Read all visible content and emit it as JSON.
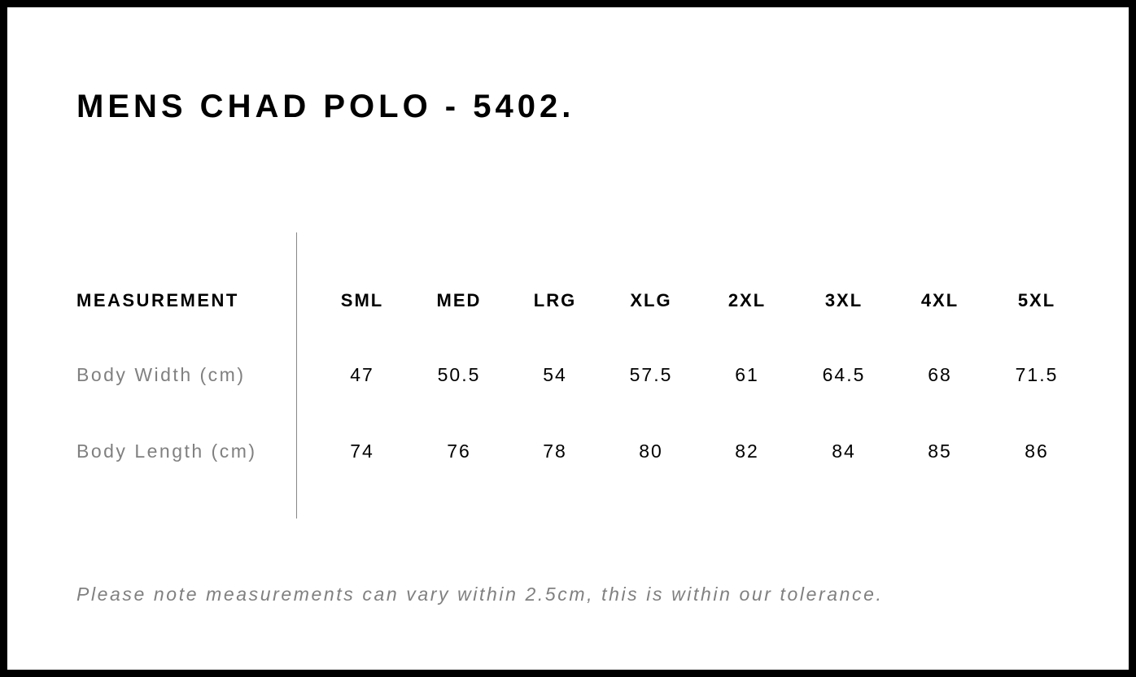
{
  "title": "MENS CHAD POLO - 5402.",
  "table": {
    "header_label": "MEASUREMENT",
    "sizes": [
      "SML",
      "MED",
      "LRG",
      "XLG",
      "2XL",
      "3XL",
      "4XL",
      "5XL"
    ],
    "rows": [
      {
        "label": "Body Width (cm)",
        "values": [
          "47",
          "50.5",
          "54",
          "57.5",
          "61",
          "64.5",
          "68",
          "71.5"
        ]
      },
      {
        "label": "Body Length (cm)",
        "values": [
          "74",
          "76",
          "78",
          "80",
          "82",
          "84",
          "85",
          "86"
        ]
      }
    ]
  },
  "note": "Please note measurements can vary within 2.5cm, this is within our tolerance.",
  "colors": {
    "border": "#000000",
    "text": "#000000",
    "muted": "#808080"
  }
}
